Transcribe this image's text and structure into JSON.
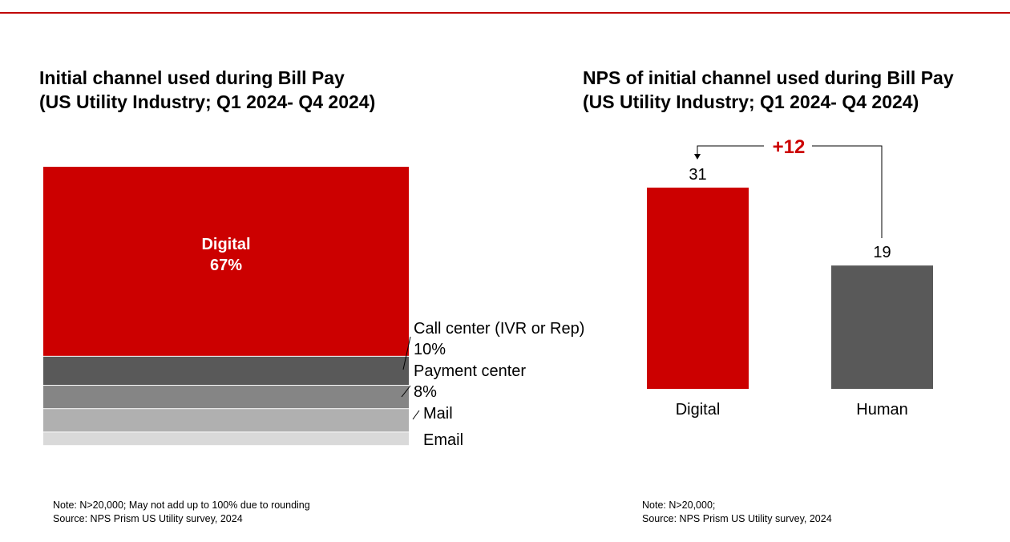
{
  "left_panel": {
    "title_line1": "Initial channel used during Bill Pay",
    "title_line2": "(US Utility Industry; Q1 2024- Q4 2024)",
    "note": "Note: N>20,000; May not add up to 100% due to rounding",
    "source": "Source: NPS Prism US Utility survey, 2024"
  },
  "right_panel": {
    "title_line1": "NPS of initial channel used during Bill Pay",
    "title_line2": "(US Utility Industry; Q1 2024- Q4 2024)",
    "note": "Note: N>20,000;",
    "source": "Source: NPS Prism US Utility survey, 2024",
    "gap_label": "+12"
  },
  "colors": {
    "accent": "#cc0000",
    "rule": "#c00000",
    "dark_gray": "#595959",
    "mid_gray": "#858585",
    "light_gray": "#b0b0b0",
    "lightest_gray": "#d9d9d9"
  },
  "chart_data": [
    {
      "type": "bar",
      "stacked": true,
      "title": "Initial channel used during Bill Pay (US Utility Industry; Q1 2024- Q4 2024)",
      "series": [
        {
          "name": "Digital",
          "value": 67,
          "label": "67%",
          "color": "#cc0000"
        },
        {
          "name": "Call center (IVR or Rep)",
          "value": 10,
          "label": "10%",
          "color": "#595959"
        },
        {
          "name": "Payment center",
          "value": 8,
          "label": "8%",
          "color": "#858585"
        },
        {
          "name": "Mail",
          "value": 8,
          "label": "",
          "color": "#b0b0b0"
        },
        {
          "name": "Email",
          "value": 4.5,
          "label": "",
          "color": "#d9d9d9"
        }
      ]
    },
    {
      "type": "bar",
      "title": "NPS of initial channel used during Bill Pay (US Utility Industry; Q1 2024- Q4 2024)",
      "categories": [
        "Digital",
        "Human"
      ],
      "values": [
        31,
        19
      ],
      "labels": [
        "31",
        "19"
      ],
      "colors": [
        "#cc0000",
        "#595959"
      ],
      "annotation": "+12",
      "ylim": [
        0,
        31
      ]
    }
  ]
}
